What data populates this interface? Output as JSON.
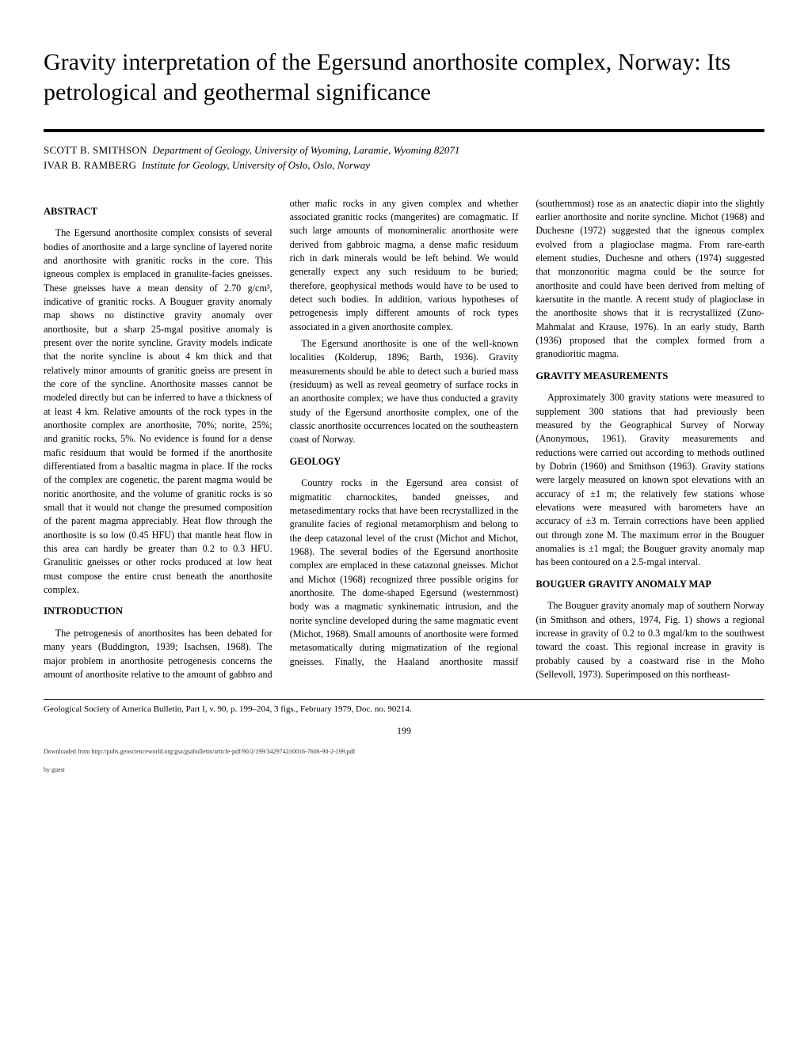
{
  "title": "Gravity interpretation of the Egersund anorthosite complex, Norway: Its petrological and geothermal significance",
  "authors": [
    {
      "name": "SCOTT B. SMITHSON",
      "affil": "Department of Geology, University of Wyoming, Laramie, Wyoming 82071"
    },
    {
      "name": "IVAR B. RAMBERG",
      "affil": "Institute for Geology, University of Oslo, Oslo, Norway"
    }
  ],
  "sections": {
    "abstract": {
      "heading": "ABSTRACT",
      "paragraphs": [
        "The Egersund anorthosite complex consists of several bodies of anorthosite and a large syncline of layered norite and anorthosite with granitic rocks in the core. This igneous complex is emplaced in granulite-facies gneisses. These gneisses have a mean density of 2.70 g/cm³, indicative of granitic rocks. A Bouguer gravity anomaly map shows no distinctive gravity anomaly over anorthosite, but a sharp 25-mgal positive anomaly is present over the norite syncline. Gravity models indicate that the norite syncline is about 4 km thick and that relatively minor amounts of granitic gneiss are present in the core of the syncline. Anorthosite masses cannot be modeled directly but can be inferred to have a thickness of at least 4 km. Relative amounts of the rock types in the anorthosite complex are anorthosite, 70%; norite, 25%; and granitic rocks, 5%. No evidence is found for a dense mafic residuum that would be formed if the anorthosite differentiated from a basaltic magma in place. If the rocks of the complex are cogenetic, the parent magma would be noritic anorthosite, and the volume of granitic rocks is so small that it would not change the presumed composition of the parent magma appreciably. Heat flow through the anorthosite is so low (0.45 HFU) that mantle heat flow in this area can hardly be greater than 0.2 to 0.3 HFU. Granulitic gneisses or other rocks produced at low heat must compose the entire crust beneath the anorthosite complex."
      ]
    },
    "introduction": {
      "heading": "INTRODUCTION",
      "paragraphs": [
        "The petrogenesis of anorthosites has been debated for many years (Buddington, 1939; Isachsen, 1968). The major problem in anorthosite petrogenesis concerns the amount of anorthosite relative to the amount of gabbro and other mafic rocks in any given complex and whether associated granitic rocks (mangerites) are comagmatic. If such large amounts of monomineralic anorthosite were derived from gabbroic magma, a dense mafic residuum rich in dark minerals would be left behind. We would generally expect any such residuum to be buried; therefore, geophysical methods would have to be used to detect such bodies. In addition, various hypotheses of petrogenesis imply different amounts of rock types associated in a given anorthosite complex.",
        "The Egersund anorthosite is one of the well-known localities (Kolderup, 1896; Barth, 1936). Gravity measurements should be able to detect such a buried mass (residuum) as well as reveal geometry of surface rocks in an anorthosite complex; we have thus conducted a gravity study of the Egersund anorthosite complex, one of the classic anorthosite occurrences located on the southeastern coast of Norway."
      ]
    },
    "geology": {
      "heading": "GEOLOGY",
      "paragraphs": [
        "Country rocks in the Egersund area consist of migmatitic charnockites, banded gneisses, and metasedimentary rocks that have been recrystallized in the granulite facies of regional metamorphism and belong to the deep catazonal level of the crust (Michot and Michot, 1968). The several bodies of the Egersund anorthosite complex are emplaced in these catazonal gneisses. Michot and Michot (1968) recognized three possible origins for anorthosite. The dome-shaped Egersund (westernmost) body was a magmatic synkinematic intrusion, and the norite syncline developed during the same magmatic event (Michot, 1968). Small amounts of anorthosite were formed metasomatically during migmatization of the regional gneisses. Finally, the Haaland anorthosite massif (southernmost) rose as an anatectic diapir into the slightly earlier anorthosite and norite syncline. Michot (1968) and Duchesne (1972) suggested that the igneous complex evolved from a plagioclase magma. From rare-earth element studies, Duchesne and others (1974) suggested that monzonoritic magma could be the source for anorthosite and could have been derived from melting of kaersutite in the mantle. A recent study of plagioclase in the anorthosite shows that it is recrystallized (Zuno-Mahmalat and Krause, 1976). In an early study, Barth (1936) proposed that the complex formed from a granodioritic magma."
      ]
    },
    "gravity_measurements": {
      "heading": "GRAVITY MEASUREMENTS",
      "paragraphs": [
        "Approximately 300 gravity stations were measured to supplement 300 stations that had previously been measured by the Geographical Survey of Norway (Anonymous, 1961). Gravity measurements and reductions were carried out according to methods outlined by Dobrin (1960) and Smithson (1963). Gravity stations were largely measured on known spot elevations with an accuracy of ±1 m; the relatively few stations whose elevations were measured with barometers have an accuracy of ±3 m. Terrain corrections have been applied out through zone M. The maximum error in the Bouguer anomalies is ±1 mgal; the Bouguer gravity anomaly map has been contoured on a 2.5-mgal interval."
      ]
    },
    "bouguer": {
      "heading": "BOUGUER GRAVITY ANOMALY MAP",
      "paragraphs": [
        "The Bouguer gravity anomaly map of southern Norway (in Smithson and others, 1974, Fig. 1) shows a regional increase in gravity of 0.2 to 0.3 mgal/km to the southwest toward the coast. This regional increase in gravity is probably caused by a coastward rise in the Moho (Sellevoll, 1973). Superimposed on this northeast-"
      ]
    }
  },
  "citation": "Geological Society of America Bulletin, Part I, v. 90, p. 199–204, 3 figs., February 1979, Doc. no. 90214.",
  "page_number": "199",
  "download_note": "Downloaded from http://pubs.geoscienceworld.org/gsa/gsabulletin/article-pdf/90/2/199/3429742/i0016-7606-90-2-199.pdf",
  "download_note2": "by guest"
}
